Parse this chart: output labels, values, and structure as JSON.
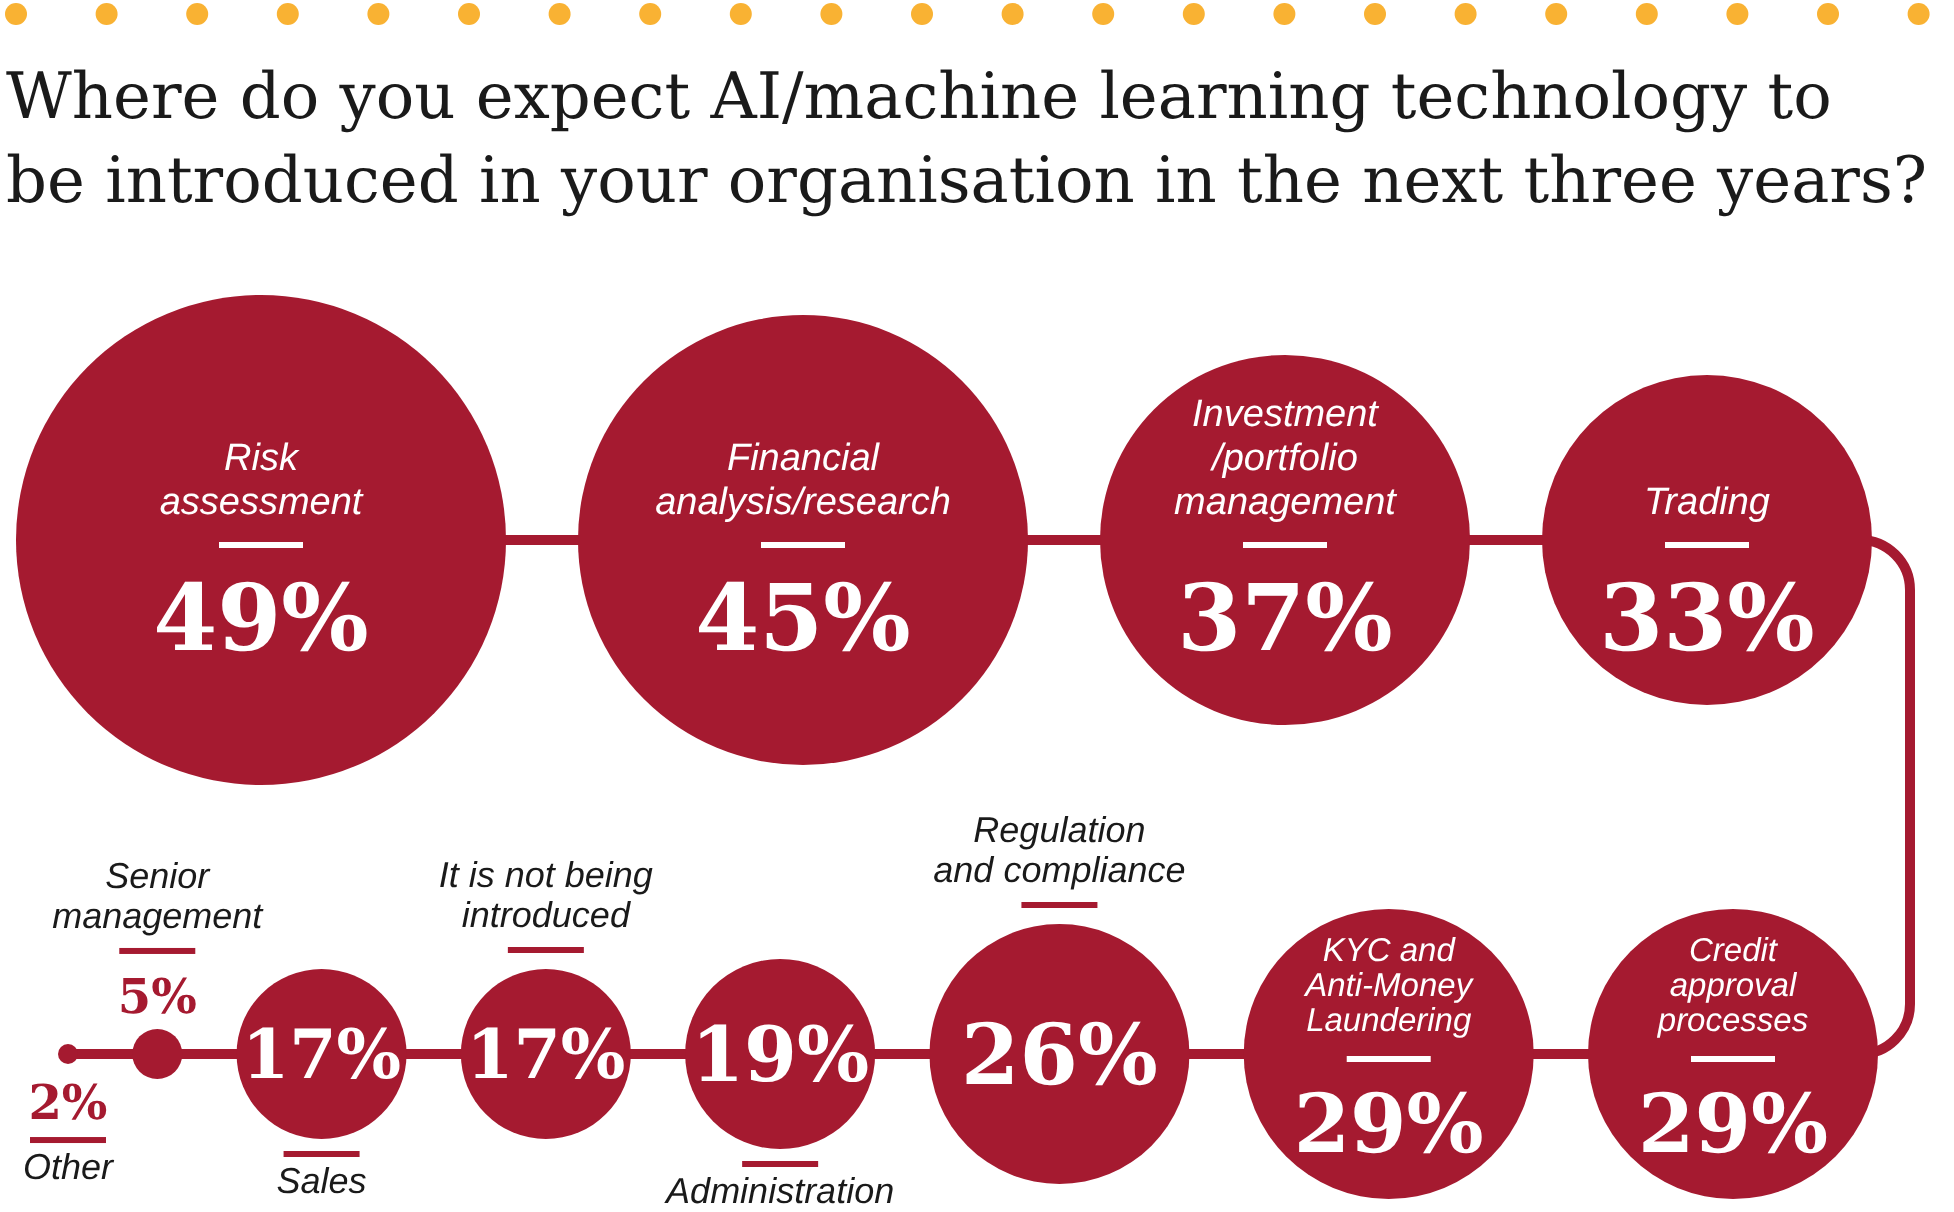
{
  "chart_data": {
    "type": "other",
    "title": "Where do you expect AI/machine learning technology to\nbe introduced in your organisation in the next three years?",
    "categories": [
      "Risk\nassessment",
      "Financial\nanalysis/research",
      "Investment\n/portfolio\nmanagement",
      "Trading",
      "Credit\napproval\nprocesses",
      "KYC and\nAnti-Money\nLaundering",
      "Regulation\nand compliance",
      "Administration",
      "It is not being\nintroduced",
      "Sales",
      "Senior\nmanagement",
      "Other"
    ],
    "values": [
      49,
      45,
      37,
      33,
      29,
      29,
      26,
      19,
      17,
      17,
      5,
      2
    ],
    "value_labels": [
      "49%",
      "45%",
      "37%",
      "33%",
      "29%",
      "29%",
      "26%",
      "19%",
      "17%",
      "17%",
      "5%",
      "2%"
    ],
    "color": "#a51a30"
  }
}
